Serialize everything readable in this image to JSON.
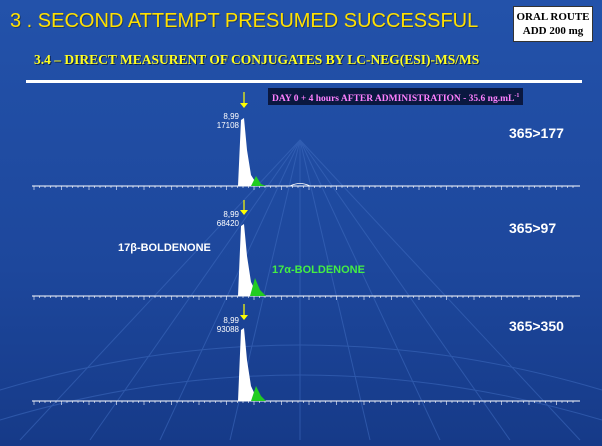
{
  "header": {
    "title": "3 . SECOND ATTEMPT PRESUMED SUCCESSFUL",
    "route_line1": "ORAL ROUTE",
    "route_line2": "ADD 200 mg",
    "subtitle": "3.4 – DIRECT MEASURENT OF CONJUGATES BY LC-NEG(ESI)-MS/MS"
  },
  "day_label": {
    "text": "DAY 0 + 4 hours AFTER ADMINISTRATION - 35.6 ng.mL",
    "superscript": "-1"
  },
  "traces": [
    {
      "transition": "365>177",
      "retention_time": "8,99",
      "peak_area": "17108"
    },
    {
      "transition": "365>97",
      "retention_time": "8,99",
      "peak_area": "68420"
    },
    {
      "transition": "365>350",
      "retention_time": "8,99",
      "peak_area": "93088"
    }
  ],
  "compounds": {
    "beta": "17β-BOLDENONE",
    "alpha": "17α-BOLDENONE"
  },
  "colors": {
    "background": "#1f4aa0",
    "title": "#ffe000",
    "subtitle": "#ffff20",
    "day_label": "#ff80ff",
    "peak_fill_beta": "#ffffff",
    "peak_fill_alpha": "#22cc22",
    "arrow": "#ffff00"
  }
}
